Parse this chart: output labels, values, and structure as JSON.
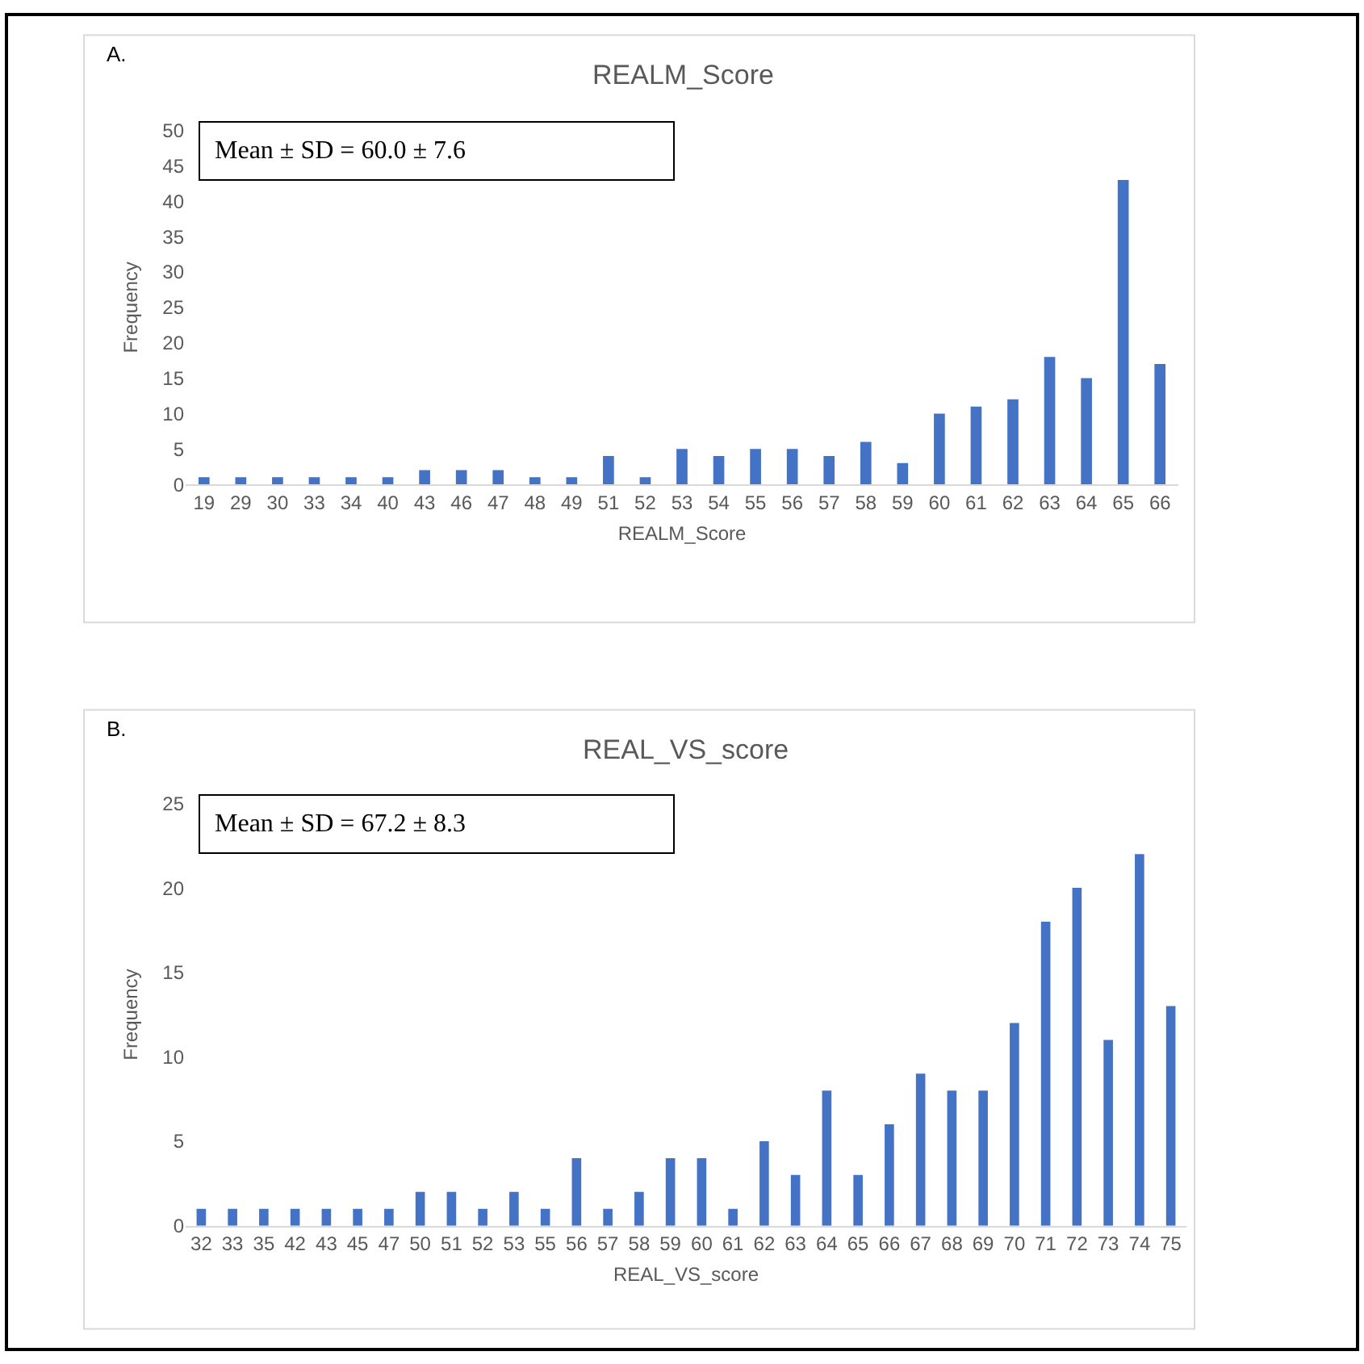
{
  "chart_data": [
    {
      "type": "bar",
      "title": "REALM_Score",
      "xlabel": "REALM_Score",
      "ylabel": "Frequency",
      "color": "#4472c4",
      "grid": false,
      "categories": [
        "19",
        "29",
        "30",
        "33",
        "34",
        "40",
        "43",
        "46",
        "47",
        "48",
        "49",
        "51",
        "52",
        "53",
        "54",
        "55",
        "56",
        "57",
        "58",
        "59",
        "60",
        "61",
        "62",
        "63",
        "64",
        "65",
        "66"
      ],
      "values": [
        1,
        1,
        1,
        1,
        1,
        1,
        2,
        2,
        2,
        1,
        1,
        4,
        1,
        5,
        4,
        5,
        5,
        4,
        6,
        3,
        10,
        11,
        12,
        18,
        15,
        43,
        17
      ],
      "ylim": [
        0,
        50
      ],
      "yticks": [
        0,
        5,
        10,
        15,
        20,
        25,
        30,
        35,
        40,
        45,
        50
      ],
      "annotations": [
        "A.",
        "Mean ± SD = 60.0 ± 7.6"
      ]
    },
    {
      "type": "bar",
      "title": "REAL_VS_score",
      "xlabel": "REAL_VS_score",
      "ylabel": "Frequency",
      "color": "#4472c4",
      "grid": false,
      "categories": [
        "32",
        "33",
        "35",
        "42",
        "43",
        "45",
        "47",
        "50",
        "51",
        "52",
        "53",
        "55",
        "56",
        "57",
        "58",
        "59",
        "60",
        "61",
        "62",
        "63",
        "64",
        "65",
        "66",
        "67",
        "68",
        "69",
        "70",
        "71",
        "72",
        "73",
        "74",
        "75"
      ],
      "values": [
        1,
        1,
        1,
        1,
        1,
        1,
        1,
        2,
        2,
        1,
        2,
        1,
        4,
        1,
        2,
        4,
        4,
        1,
        5,
        3,
        8,
        3,
        6,
        9,
        8,
        8,
        12,
        18,
        20,
        11,
        22,
        13
      ],
      "ylim": [
        0,
        25
      ],
      "yticks": [
        0,
        5,
        10,
        15,
        20,
        25
      ],
      "annotations": [
        "B.",
        "Mean ± SD = 67.2 ± 8.3"
      ]
    }
  ]
}
